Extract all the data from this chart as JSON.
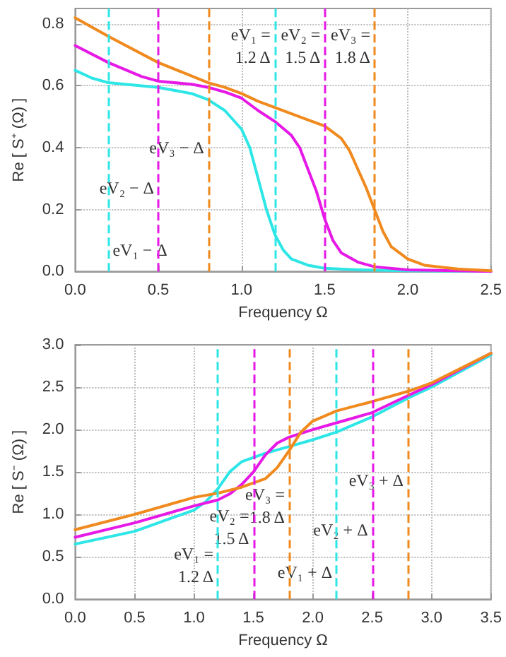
{
  "chart_data": [
    {
      "type": "line",
      "xlabel": "Frequency Ω",
      "ylabel": "Re [ S⁺ (Ω) ]",
      "xlim": [
        0,
        2.5
      ],
      "ylim": [
        0,
        0.85
      ],
      "xticks": [
        {
          "value": 0,
          "label": "0.0"
        },
        0.5,
        {
          "value": 1,
          "label": "1.0"
        },
        1.5,
        {
          "value": 2,
          "label": "2.0"
        },
        2.5
      ],
      "yticks": [
        {
          "value": 0,
          "label": "0.0"
        },
        0.2,
        0.4,
        0.6,
        0.8
      ],
      "grid": true,
      "line_style": "solid",
      "marker": "none",
      "series": [
        {
          "color": "#2ee6e6",
          "x": [
            0,
            0.1,
            0.2,
            0.3,
            0.5,
            0.7,
            0.8,
            0.9,
            1.0,
            1.05,
            1.1,
            1.15,
            1.2,
            1.25,
            1.3,
            1.4,
            1.5,
            1.7,
            2.0,
            2.5
          ],
          "values": [
            0.65,
            0.625,
            0.61,
            0.605,
            0.595,
            0.575,
            0.555,
            0.52,
            0.46,
            0.4,
            0.3,
            0.2,
            0.12,
            0.07,
            0.04,
            0.02,
            0.01,
            0.005,
            0.002,
            0
          ]
        },
        {
          "color": "#e619e6",
          "x": [
            0,
            0.2,
            0.4,
            0.5,
            0.7,
            0.8,
            0.9,
            1.0,
            1.1,
            1.2,
            1.3,
            1.35,
            1.4,
            1.45,
            1.5,
            1.55,
            1.6,
            1.7,
            1.8,
            2.0,
            2.5
          ],
          "values": [
            0.73,
            0.675,
            0.63,
            0.615,
            0.605,
            0.595,
            0.58,
            0.56,
            0.52,
            0.485,
            0.44,
            0.4,
            0.33,
            0.26,
            0.17,
            0.1,
            0.06,
            0.03,
            0.015,
            0.005,
            0
          ]
        },
        {
          "color": "#f08a1e",
          "x": [
            0,
            0.2,
            0.5,
            0.8,
            0.9,
            1.0,
            1.1,
            1.2,
            1.35,
            1.5,
            1.6,
            1.65,
            1.7,
            1.75,
            1.8,
            1.85,
            1.9,
            2.0,
            2.1,
            2.3,
            2.5
          ],
          "values": [
            0.82,
            0.76,
            0.675,
            0.61,
            0.595,
            0.575,
            0.55,
            0.53,
            0.5,
            0.47,
            0.43,
            0.39,
            0.33,
            0.27,
            0.2,
            0.13,
            0.08,
            0.04,
            0.02,
            0.008,
            0.002
          ]
        }
      ],
      "ref_lines": [
        {
          "axis": "x",
          "value": 0.2,
          "color": "#2ee6e6",
          "line_style": "dashed"
        },
        {
          "axis": "x",
          "value": 0.5,
          "color": "#e619e6",
          "line_style": "dashed"
        },
        {
          "axis": "x",
          "value": 0.8,
          "color": "#f08a1e",
          "line_style": "dashed"
        },
        {
          "axis": "x",
          "value": 1.2,
          "color": "#2ee6e6",
          "line_style": "dashed"
        },
        {
          "axis": "x",
          "value": 1.5,
          "color": "#e619e6",
          "line_style": "dashed"
        },
        {
          "axis": "x",
          "value": 1.8,
          "color": "#f08a1e",
          "line_style": "dashed"
        }
      ],
      "annotations": [
        {
          "text": "eV₁ − Δ",
          "x": 0.2,
          "y": 0.07
        },
        {
          "text": "eV₂ − Δ",
          "x": 0.5,
          "y": 0.27
        },
        {
          "text": "eV₃ − Δ",
          "x": 0.8,
          "y": 0.4
        },
        {
          "text": "eV₁ =\n1.2 Δ",
          "x": 1.2,
          "y": 0.73
        },
        {
          "text": "eV₂ =\n1.5 Δ",
          "x": 1.5,
          "y": 0.73
        },
        {
          "text": "eV₃ =\n1.8 Δ",
          "x": 1.8,
          "y": 0.73
        }
      ]
    },
    {
      "type": "line",
      "xlabel": "Frequency Ω",
      "ylabel": "Re [ S⁻ (Ω) ]",
      "xlim": [
        0,
        3.5
      ],
      "ylim": [
        0,
        3
      ],
      "xticks": [
        {
          "value": 0,
          "label": "0.0"
        },
        0.5,
        {
          "value": 1,
          "label": "1.0"
        },
        1.5,
        {
          "value": 2,
          "label": "2.0"
        },
        2.5,
        {
          "value": 3,
          "label": "3.0"
        },
        3.5
      ],
      "yticks": [
        {
          "value": 0,
          "label": "0.0"
        },
        0.5,
        {
          "value": 1,
          "label": "1.0"
        },
        1.5,
        {
          "value": 2,
          "label": "2.0"
        },
        2.5,
        {
          "value": 3,
          "label": "3.0"
        }
      ],
      "grid": true,
      "line_style": "solid",
      "marker": "none",
      "series": [
        {
          "color": "#2ee6e6",
          "x": [
            0,
            0.5,
            1.0,
            1.1,
            1.2,
            1.3,
            1.4,
            1.5,
            1.6,
            1.8,
            2.0,
            2.2,
            2.5,
            2.8,
            3.0,
            3.5
          ],
          "values": [
            0.65,
            0.8,
            1.05,
            1.15,
            1.3,
            1.5,
            1.62,
            1.67,
            1.72,
            1.8,
            1.88,
            1.97,
            2.15,
            2.37,
            2.5,
            2.88
          ]
        },
        {
          "color": "#e619e6",
          "x": [
            0,
            0.5,
            1.0,
            1.2,
            1.3,
            1.4,
            1.5,
            1.6,
            1.7,
            1.8,
            2.0,
            2.2,
            2.5,
            2.8,
            3.0,
            3.5
          ],
          "values": [
            0.73,
            0.9,
            1.1,
            1.17,
            1.24,
            1.35,
            1.5,
            1.7,
            1.84,
            1.91,
            2.0,
            2.08,
            2.2,
            2.4,
            2.53,
            2.9
          ]
        },
        {
          "color": "#f08a1e",
          "x": [
            0,
            0.5,
            1.0,
            1.2,
            1.4,
            1.6,
            1.7,
            1.8,
            1.9,
            2.0,
            2.2,
            2.5,
            2.8,
            3.0,
            3.5
          ],
          "values": [
            0.82,
            1.0,
            1.2,
            1.25,
            1.32,
            1.42,
            1.55,
            1.75,
            1.97,
            2.1,
            2.22,
            2.33,
            2.45,
            2.55,
            2.9
          ]
        }
      ],
      "ref_lines": [
        {
          "axis": "x",
          "value": 1.2,
          "color": "#2ee6e6",
          "line_style": "dashed"
        },
        {
          "axis": "x",
          "value": 1.5,
          "color": "#e619e6",
          "line_style": "dashed"
        },
        {
          "axis": "x",
          "value": 1.8,
          "color": "#f08a1e",
          "line_style": "dashed"
        },
        {
          "axis": "x",
          "value": 2.2,
          "color": "#2ee6e6",
          "line_style": "dashed"
        },
        {
          "axis": "x",
          "value": 2.5,
          "color": "#e619e6",
          "line_style": "dashed"
        },
        {
          "axis": "x",
          "value": 2.8,
          "color": "#f08a1e",
          "line_style": "dashed"
        }
      ],
      "annotations": [
        {
          "text": "eV₁ =\n1.2 Δ",
          "x": 1.2,
          "y": 0.4
        },
        {
          "text": "eV₂ =\n1.5 Δ",
          "x": 1.5,
          "y": 0.85
        },
        {
          "text": "eV₃ =\n1.8 Δ",
          "x": 1.8,
          "y": 1.1
        },
        {
          "text": "eV₁ + Δ",
          "x": 2.2,
          "y": 0.32
        },
        {
          "text": "eV₂ + Δ",
          "x": 2.5,
          "y": 0.82
        },
        {
          "text": "eV₃ + Δ",
          "x": 2.8,
          "y": 1.4
        }
      ]
    }
  ]
}
